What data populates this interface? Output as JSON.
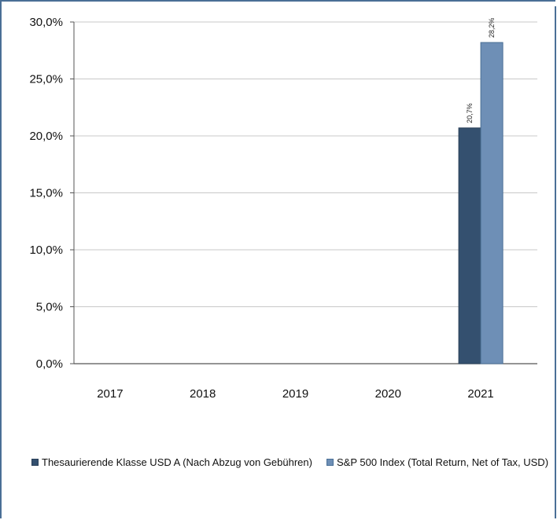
{
  "chart_data": {
    "type": "bar",
    "categories": [
      "2017",
      "2018",
      "2019",
      "2020",
      "2021"
    ],
    "series": [
      {
        "name": "Thesaurierende Klasse USD A (Nach Abzug von Gebühren)",
        "values": [
          null,
          null,
          null,
          null,
          20.7
        ],
        "labels": [
          "",
          "",
          "",
          "",
          "20,7%"
        ],
        "color": "#34506f"
      },
      {
        "name": "S&P 500 Index (Total Return, Net of Tax, USD)",
        "values": [
          null,
          null,
          null,
          null,
          28.2
        ],
        "labels": [
          "",
          "",
          "",
          "",
          "28,2%"
        ],
        "color": "#6e8fb6"
      }
    ],
    "y_ticks": [
      "0,0%",
      "5,0%",
      "10,0%",
      "15,0%",
      "20,0%",
      "25,0%",
      "30,0%"
    ],
    "ylim": [
      0,
      30
    ],
    "grid": true,
    "legend_position": "bottom"
  }
}
